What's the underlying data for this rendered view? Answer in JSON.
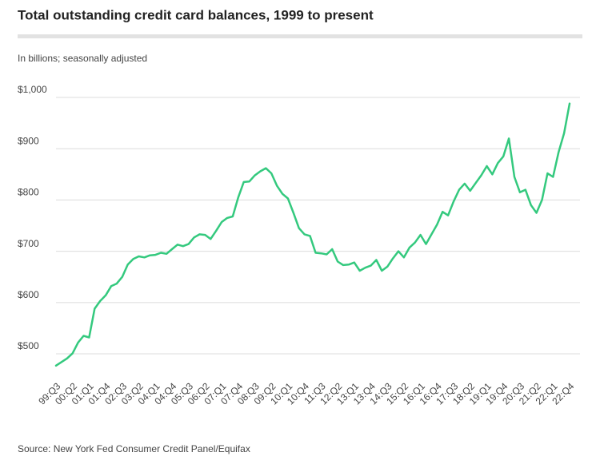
{
  "chart_data": {
    "type": "line",
    "title": "Total outstanding credit card balances, 1999 to present",
    "subtitle": "In billions; seasonally adjusted",
    "source": "Source: New York Fed Consumer Credit Panel/Equifax",
    "categories": [
      "99:Q3",
      null,
      null,
      "00:Q2",
      null,
      null,
      "01:Q1",
      null,
      null,
      "01:Q4",
      null,
      null,
      "02:Q3",
      null,
      null,
      "03:Q2",
      null,
      null,
      "04:Q1",
      null,
      null,
      "04:Q4",
      null,
      null,
      "05:Q3",
      null,
      null,
      "06:Q2",
      null,
      null,
      "07:Q1",
      null,
      null,
      "07:Q4",
      null,
      null,
      "08:Q3",
      null,
      null,
      "09:Q2",
      null,
      null,
      "10:Q1",
      null,
      null,
      "10:Q4",
      null,
      null,
      "11:Q3",
      null,
      null,
      "12:Q2",
      null,
      null,
      "13:Q1",
      null,
      null,
      "13:Q4",
      null,
      null,
      "14:Q3",
      null,
      null,
      "15:Q2",
      null,
      null,
      "16:Q1",
      null,
      null,
      "16:Q4",
      null,
      null,
      "17:Q3",
      null,
      null,
      "18:Q2",
      null,
      null,
      "19:Q1",
      null,
      null,
      "19:Q4",
      null,
      null,
      "20:Q3",
      null,
      null,
      "21:Q2",
      null,
      null,
      "22:Q1",
      null,
      null,
      "22:Q4"
    ],
    "series": [
      {
        "name": "Credit card balances",
        "color": "#34c97e",
        "values": [
          477,
          484,
          491,
          501,
          522,
          535,
          532,
          588,
          603,
          614,
          632,
          637,
          650,
          674,
          685,
          690,
          688,
          692,
          693,
          697,
          695,
          704,
          713,
          710,
          714,
          727,
          733,
          732,
          724,
          740,
          757,
          765,
          768,
          805,
          835,
          836,
          848,
          856,
          862,
          852,
          828,
          812,
          803,
          775,
          745,
          733,
          730,
          697,
          696,
          694,
          704,
          680,
          673,
          674,
          678,
          662,
          668,
          672,
          683,
          662,
          670,
          686,
          700,
          688,
          707,
          717,
          732,
          714,
          733,
          752,
          777,
          770,
          797,
          820,
          832,
          818,
          833,
          848,
          866,
          850,
          872,
          885,
          920,
          845,
          815,
          820,
          790,
          775,
          800,
          852,
          845,
          893,
          930,
          988
        ]
      }
    ],
    "ylim": [
      460,
      1000
    ],
    "yticks": [
      {
        "value": 500,
        "label": "$500"
      },
      {
        "value": 600,
        "label": "$600"
      },
      {
        "value": 700,
        "label": "$700"
      },
      {
        "value": 800,
        "label": "$800"
      },
      {
        "value": 900,
        "label": "$900"
      },
      {
        "value": 1000,
        "label": "$1,000"
      }
    ],
    "grid": true
  }
}
